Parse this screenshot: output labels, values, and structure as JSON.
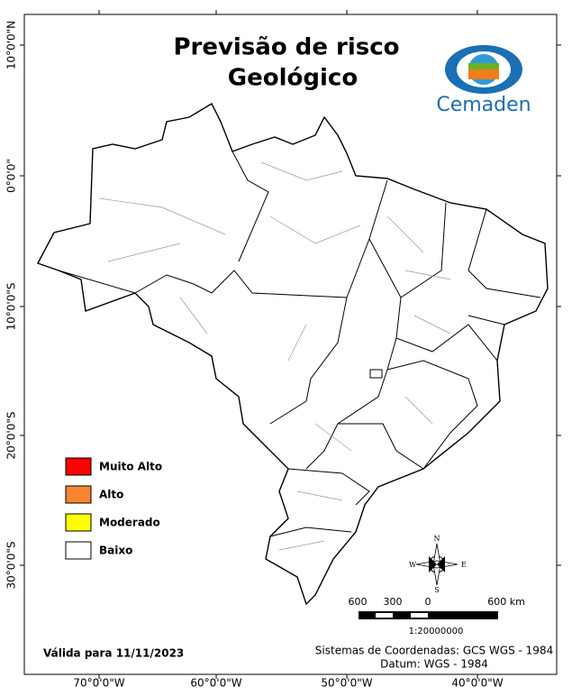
{
  "header": {
    "title_lines": [
      "Previsão de risco",
      "Geológico"
    ],
    "logo": "Cemaden"
  },
  "graticule": {
    "latitude_labels": [
      "10°0'0\"N",
      "0°0'0\"",
      "10°0'0\"S",
      "20°0'0\"S",
      "30°0'0\"S"
    ],
    "longitude_labels": [
      "70°0'0\"W",
      "60°0'0\"W",
      "50°0'0\"W",
      "40°0'0\"W"
    ]
  },
  "map": {
    "fill": "#ffffff"
  },
  "legend": [
    {
      "label": "Muito Alto",
      "color": "#ff0000"
    },
    {
      "label": "Alto",
      "color": "#f7852f"
    },
    {
      "label": "Moderado",
      "color": "#ffff00"
    },
    {
      "label": "Baixo",
      "color": "#ffffff"
    }
  ],
  "compass": {
    "n": "N",
    "s": "S",
    "e": "E",
    "w": "W"
  },
  "scale": {
    "labels": [
      "600",
      "300",
      "0",
      "600 km"
    ],
    "ratio": "1:20000000"
  },
  "footer": {
    "validity": "Válida para 11/11/2023",
    "coordinate_system": "Sistemas de Coordenadas: GCS WGS - 1984",
    "datum": "Datum: WGS - 1984"
  }
}
